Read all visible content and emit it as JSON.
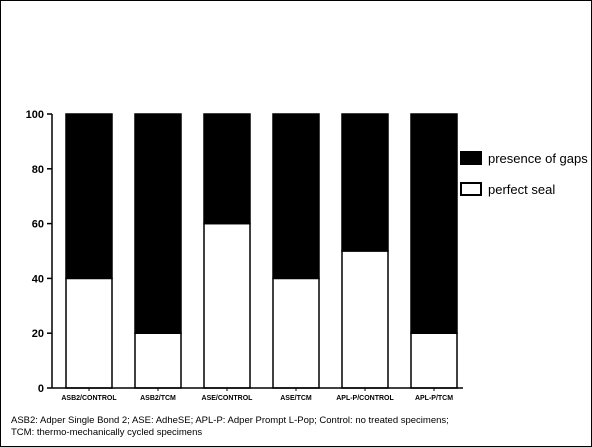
{
  "chart_data": {
    "type": "bar",
    "stacked": true,
    "categories": [
      "ASB2/CONTROL",
      "ASB2/TCM",
      "ASE/CONTROL",
      "ASE/TCM",
      "APL-P/CONTROL",
      "APL-P/TCM"
    ],
    "series": [
      {
        "name": "perfect seal",
        "values": [
          40,
          20,
          60,
          40,
          50,
          20
        ],
        "color": "#ffffff"
      },
      {
        "name": "presence of gaps",
        "values": [
          60,
          80,
          40,
          60,
          50,
          80
        ],
        "color": "#000000"
      }
    ],
    "legend_order": [
      "presence of gaps",
      "perfect seal"
    ],
    "legend_position": "right",
    "ylim": [
      0,
      100
    ],
    "yticks": [
      0,
      20,
      40,
      60,
      80,
      100
    ],
    "grid": false
  },
  "caption": {
    "line1": "ASB2: Adper Single Bond 2; ASE: AdheSE; APL-P: Adper Prompt L-Pop; Control: no treated specimens;",
    "line2": "TCM: thermo-mechanically cycled specimens"
  }
}
